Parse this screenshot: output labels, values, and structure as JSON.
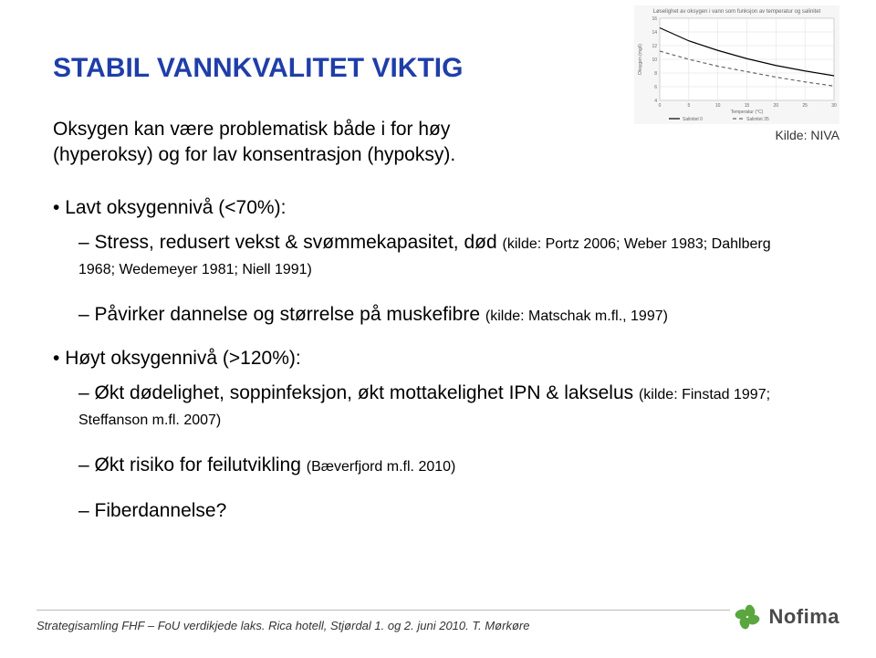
{
  "title": {
    "text": "STABIL VANNKVALITET VIKTIG",
    "color": "#1f3ea8",
    "fontsize": 30
  },
  "intro": {
    "text": "Oksygen kan være problematisk både i for høy (hyperoksy) og for lav konsentrasjon (hypoksy).",
    "fontsize": 21,
    "color": "#000000"
  },
  "kilde_label": "Kilde: NIVA",
  "bullets": {
    "fontsize_main": 21,
    "fontsize_sub": 21,
    "fontsize_cite": 16,
    "items": [
      {
        "text": "Lavt oksygennivå (<70%):",
        "sub": [
          {
            "text": "Stress, redusert vekst & svømmekapasitet, død ",
            "cite": "(kilde: Portz 2006; Weber 1983; Dahlberg 1968; Wedemeyer 1981; Niell 1991)"
          },
          {
            "text": "Påvirker dannelse og størrelse på muskefibre ",
            "cite": "(kilde: Matschak m.fl., 1997)"
          }
        ]
      },
      {
        "text": "Høyt oksygennivå (>120%):",
        "sub": [
          {
            "text": "Økt dødelighet, soppinfeksjon, økt mottakelighet IPN & lakselus ",
            "cite": "(kilde: Finstad 1997; Steffanson m.fl. 2007)"
          },
          {
            "text": "Økt risiko for feilutvikling ",
            "cite": "(Bæverfjord m.fl. 2010)"
          },
          {
            "text": "Fiberdannelse?",
            "cite": ""
          }
        ]
      }
    ]
  },
  "chart": {
    "type": "line",
    "title": "Løselighet av oksygen i vann som funksjon av temperatur og salinitet",
    "title_fontsize": 6,
    "background_color": "#f6f6f6",
    "panel_color": "#ffffff",
    "grid_color": "#dddddd",
    "axis_color": "#888888",
    "text_color": "#666666",
    "xlim": [
      0,
      30
    ],
    "ylim": [
      4,
      16
    ],
    "xlabel": "Temperatur (°C)",
    "ylabel": "Oksygen (mg/l)",
    "label_fontsize": 5,
    "tick_fontsize": 5,
    "xticks": [
      0,
      5,
      10,
      15,
      20,
      25,
      30
    ],
    "yticks": [
      4,
      6,
      8,
      10,
      12,
      14,
      16
    ],
    "line_width": 1.2,
    "series": [
      {
        "name": "Salinitet 0",
        "color": "#000000",
        "dash": "none",
        "y": [
          14.6,
          12.7,
          11.3,
          10.1,
          9.1,
          8.3,
          7.6
        ]
      },
      {
        "name": "Salinitet 35",
        "color": "#666666",
        "dash": "4,3",
        "y": [
          11.2,
          10.0,
          9.0,
          8.2,
          7.4,
          6.7,
          6.1
        ]
      }
    ],
    "x": [
      0,
      5,
      10,
      15,
      20,
      25,
      30
    ],
    "legend_pos": "bottom"
  },
  "footer": {
    "text": "Strategisamling FHF – FoU verdikjede laks. Rica hotell, Stjørdal 1. og 2. juni 2010. T. Mørkøre",
    "fontsize": 13
  },
  "logo": {
    "text": "Nofima",
    "text_color": "#4a4a4a",
    "petal_colors": [
      "#5aa63f",
      "#5aa63f",
      "#5aa63f",
      "#5aa63f"
    ]
  }
}
